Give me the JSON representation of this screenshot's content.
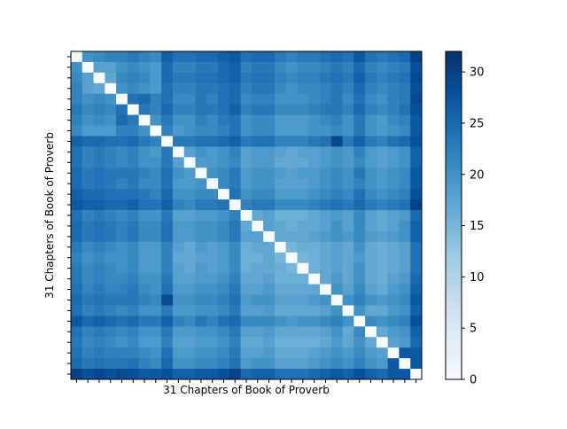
{
  "chart_data": {
    "type": "heatmap",
    "title": "",
    "xlabel": "31 Chapters of Book of Proverb",
    "ylabel": "31 Chapters of Book of Proverb",
    "rows": 31,
    "cols": 31,
    "xtick_labels_shown": false,
    "ytick_labels_shown": false,
    "grid": false,
    "colormap": "Blues",
    "color_stops": [
      "#f7fbff",
      "#deebf7",
      "#c6dbef",
      "#9ecae1",
      "#6baed6",
      "#4292c6",
      "#2171b5",
      "#08519c",
      "#08306b"
    ],
    "value_range": [
      0,
      32
    ],
    "colorbar": {
      "placement": "right",
      "ticks": [
        0,
        5,
        10,
        15,
        20,
        25,
        30
      ]
    },
    "matrix": [
      [
        0,
        20,
        21,
        22,
        22,
        23,
        22,
        21,
        26,
        24,
        24,
        25,
        25,
        26,
        27,
        24,
        25,
        25,
        23,
        22,
        23,
        23,
        24,
        25,
        24,
        27,
        24,
        23,
        24,
        25,
        30
      ],
      [
        20,
        0,
        18,
        18,
        20,
        21,
        20,
        19,
        25,
        22,
        22,
        23,
        23,
        25,
        26,
        22,
        23,
        23,
        21,
        20,
        21,
        21,
        22,
        23,
        22,
        25,
        22,
        21,
        22,
        23,
        28
      ],
      [
        21,
        18,
        0,
        17,
        21,
        22,
        21,
        19,
        25,
        23,
        23,
        24,
        24,
        25,
        26,
        23,
        24,
        24,
        22,
        21,
        22,
        22,
        23,
        24,
        23,
        26,
        23,
        22,
        23,
        24,
        29
      ],
      [
        22,
        18,
        17,
        0,
        20,
        21,
        20,
        19,
        24,
        22,
        22,
        23,
        23,
        24,
        25,
        22,
        23,
        23,
        21,
        20,
        21,
        21,
        22,
        23,
        22,
        25,
        22,
        21,
        22,
        23,
        28
      ],
      [
        22,
        20,
        21,
        20,
        0,
        24,
        25,
        22,
        24,
        21,
        21,
        23,
        22,
        24,
        25,
        21,
        22,
        22,
        20,
        20,
        20,
        21,
        22,
        23,
        21,
        24,
        21,
        20,
        22,
        23,
        29
      ],
      [
        23,
        21,
        22,
        21,
        24,
        0,
        23,
        22,
        25,
        22,
        22,
        23,
        23,
        24,
        26,
        22,
        23,
        23,
        21,
        21,
        21,
        22,
        23,
        23,
        22,
        25,
        22,
        21,
        22,
        24,
        28
      ],
      [
        22,
        20,
        21,
        20,
        25,
        23,
        0,
        20,
        23,
        20,
        20,
        22,
        21,
        23,
        24,
        20,
        21,
        21,
        19,
        19,
        19,
        20,
        21,
        22,
        20,
        23,
        20,
        19,
        21,
        22,
        27
      ],
      [
        21,
        19,
        19,
        19,
        22,
        22,
        20,
        0,
        22,
        19,
        20,
        21,
        21,
        22,
        24,
        20,
        21,
        21,
        19,
        19,
        19,
        20,
        20,
        21,
        20,
        23,
        20,
        19,
        20,
        21,
        27
      ],
      [
        26,
        25,
        25,
        24,
        24,
        25,
        23,
        22,
        0,
        23,
        23,
        24,
        24,
        25,
        26,
        23,
        24,
        24,
        22,
        22,
        22,
        23,
        24,
        29,
        23,
        26,
        23,
        22,
        24,
        25,
        28
      ],
      [
        24,
        22,
        23,
        22,
        21,
        22,
        20,
        19,
        23,
        0,
        18,
        20,
        19,
        20,
        22,
        18,
        19,
        19,
        18,
        17,
        18,
        18,
        19,
        20,
        19,
        22,
        19,
        18,
        19,
        20,
        26
      ],
      [
        24,
        22,
        23,
        22,
        21,
        22,
        20,
        20,
        23,
        18,
        0,
        19,
        19,
        20,
        21,
        18,
        19,
        19,
        17,
        17,
        17,
        18,
        19,
        20,
        19,
        21,
        19,
        18,
        19,
        20,
        26
      ],
      [
        25,
        23,
        24,
        23,
        23,
        23,
        22,
        21,
        24,
        20,
        19,
        0,
        20,
        21,
        23,
        19,
        20,
        20,
        19,
        18,
        19,
        19,
        20,
        21,
        20,
        23,
        20,
        19,
        20,
        21,
        27
      ],
      [
        25,
        23,
        24,
        23,
        22,
        23,
        21,
        21,
        24,
        19,
        19,
        20,
        0,
        21,
        23,
        19,
        20,
        20,
        18,
        18,
        18,
        19,
        20,
        21,
        20,
        22,
        20,
        19,
        20,
        21,
        27
      ],
      [
        26,
        25,
        25,
        24,
        24,
        24,
        23,
        22,
        25,
        20,
        20,
        21,
        21,
        0,
        24,
        20,
        21,
        21,
        19,
        19,
        19,
        20,
        21,
        22,
        21,
        24,
        21,
        20,
        21,
        22,
        28
      ],
      [
        27,
        26,
        26,
        25,
        25,
        26,
        24,
        24,
        26,
        22,
        21,
        23,
        23,
        24,
        0,
        22,
        23,
        23,
        21,
        21,
        21,
        22,
        23,
        24,
        23,
        25,
        23,
        22,
        23,
        24,
        30
      ],
      [
        24,
        22,
        23,
        22,
        21,
        22,
        20,
        20,
        23,
        18,
        18,
        19,
        19,
        20,
        22,
        0,
        17,
        18,
        16,
        16,
        16,
        17,
        18,
        19,
        18,
        21,
        18,
        17,
        18,
        19,
        25
      ],
      [
        25,
        23,
        24,
        23,
        22,
        23,
        21,
        21,
        24,
        19,
        19,
        20,
        20,
        21,
        23,
        17,
        0,
        18,
        17,
        16,
        17,
        17,
        18,
        20,
        18,
        21,
        18,
        17,
        18,
        20,
        26
      ],
      [
        25,
        23,
        24,
        23,
        22,
        23,
        21,
        21,
        24,
        19,
        19,
        20,
        20,
        21,
        23,
        18,
        18,
        0,
        17,
        17,
        17,
        18,
        19,
        20,
        19,
        21,
        19,
        18,
        19,
        20,
        26
      ],
      [
        23,
        21,
        22,
        21,
        20,
        21,
        19,
        19,
        22,
        18,
        17,
        19,
        18,
        19,
        21,
        16,
        17,
        17,
        0,
        15,
        16,
        16,
        17,
        18,
        17,
        20,
        17,
        16,
        17,
        18,
        24
      ],
      [
        22,
        20,
        21,
        20,
        20,
        21,
        19,
        19,
        22,
        17,
        17,
        18,
        18,
        19,
        21,
        16,
        16,
        17,
        15,
        0,
        15,
        16,
        17,
        18,
        17,
        19,
        17,
        16,
        17,
        18,
        24
      ],
      [
        23,
        21,
        22,
        21,
        20,
        21,
        19,
        19,
        22,
        18,
        17,
        19,
        18,
        19,
        21,
        16,
        17,
        17,
        16,
        15,
        0,
        16,
        17,
        18,
        17,
        20,
        17,
        16,
        17,
        18,
        24
      ],
      [
        23,
        21,
        22,
        21,
        21,
        22,
        20,
        20,
        23,
        18,
        18,
        19,
        19,
        20,
        22,
        17,
        17,
        18,
        16,
        16,
        16,
        0,
        17,
        19,
        17,
        20,
        17,
        16,
        18,
        19,
        25
      ],
      [
        24,
        22,
        23,
        22,
        22,
        23,
        21,
        20,
        24,
        19,
        19,
        20,
        20,
        21,
        23,
        18,
        18,
        19,
        17,
        17,
        17,
        17,
        0,
        20,
        18,
        21,
        18,
        17,
        19,
        20,
        26
      ],
      [
        25,
        23,
        24,
        23,
        23,
        23,
        22,
        21,
        29,
        20,
        20,
        21,
        21,
        22,
        24,
        19,
        20,
        20,
        18,
        18,
        18,
        19,
        20,
        0,
        20,
        22,
        20,
        19,
        20,
        21,
        27
      ],
      [
        24,
        22,
        23,
        22,
        21,
        22,
        20,
        20,
        23,
        19,
        19,
        20,
        20,
        21,
        23,
        18,
        18,
        19,
        17,
        17,
        17,
        17,
        18,
        20,
        0,
        20,
        17,
        17,
        19,
        20,
        26
      ],
      [
        27,
        25,
        26,
        25,
        24,
        25,
        23,
        23,
        26,
        22,
        21,
        23,
        22,
        24,
        25,
        21,
        21,
        21,
        20,
        19,
        20,
        20,
        21,
        22,
        20,
        0,
        21,
        20,
        21,
        22,
        28
      ],
      [
        24,
        22,
        23,
        22,
        21,
        22,
        20,
        20,
        23,
        19,
        19,
        20,
        20,
        21,
        23,
        18,
        18,
        19,
        17,
        17,
        17,
        17,
        18,
        20,
        17,
        21,
        0,
        17,
        19,
        20,
        26
      ],
      [
        23,
        21,
        22,
        21,
        20,
        21,
        19,
        19,
        22,
        18,
        18,
        19,
        19,
        20,
        22,
        17,
        17,
        18,
        16,
        16,
        16,
        16,
        17,
        19,
        17,
        20,
        17,
        0,
        18,
        19,
        25
      ],
      [
        24,
        22,
        23,
        22,
        22,
        22,
        21,
        20,
        24,
        19,
        19,
        20,
        20,
        21,
        23,
        18,
        18,
        19,
        17,
        17,
        17,
        18,
        19,
        20,
        19,
        21,
        19,
        18,
        0,
        27,
        27
      ],
      [
        25,
        23,
        24,
        23,
        23,
        24,
        22,
        21,
        25,
        20,
        20,
        21,
        21,
        22,
        24,
        19,
        20,
        20,
        18,
        18,
        18,
        19,
        20,
        21,
        20,
        22,
        20,
        19,
        27,
        0,
        27
      ],
      [
        30,
        28,
        29,
        28,
        29,
        28,
        27,
        27,
        28,
        26,
        26,
        27,
        27,
        28,
        30,
        25,
        26,
        26,
        24,
        24,
        24,
        25,
        26,
        27,
        26,
        28,
        26,
        25,
        27,
        27,
        0
      ]
    ]
  }
}
